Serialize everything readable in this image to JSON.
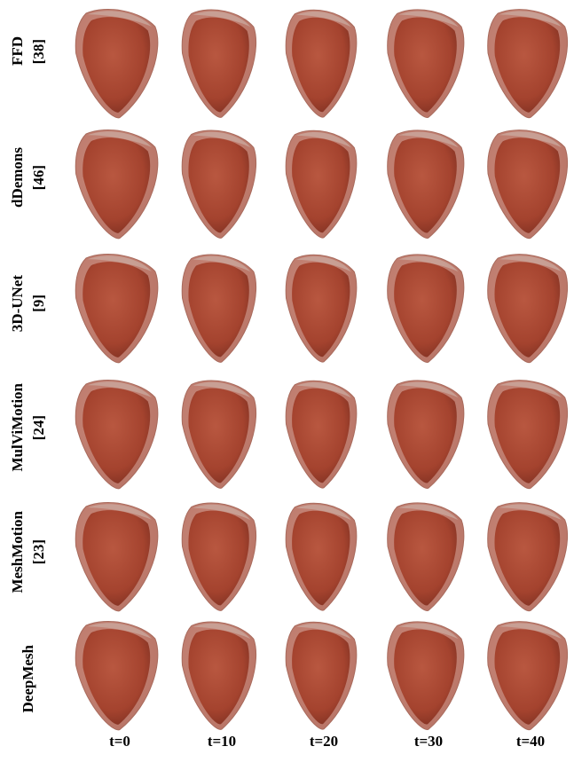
{
  "rows": [
    {
      "method": "FFD",
      "ref": "[38]"
    },
    {
      "method": "dDemons",
      "ref": "[46]"
    },
    {
      "method": "3D-UNet",
      "ref": "[9]"
    },
    {
      "method": "MulViMotion",
      "ref": "[24]"
    },
    {
      "method": "MeshMotion",
      "ref": "[23]"
    },
    {
      "method": "DeepMesh",
      "ref": ""
    }
  ],
  "columns": [
    "t=0",
    "t=10",
    "t=20",
    "t=30",
    "t=40"
  ],
  "colors": {
    "outer_wall": "#b87466",
    "inner_surface": "#a3402b",
    "rim": "#c9a49a"
  },
  "icons": [
    "heart-mesh-icon"
  ]
}
